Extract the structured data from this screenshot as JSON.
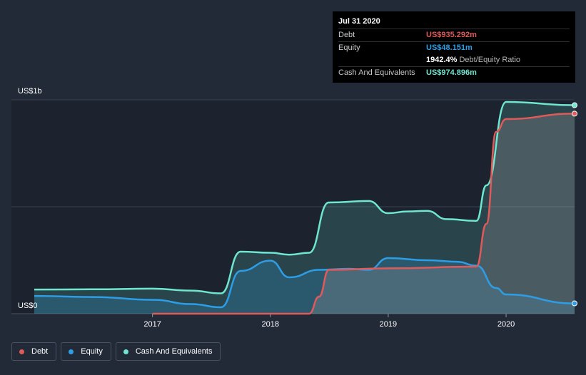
{
  "chart_data": {
    "type": "area",
    "yaxis": {
      "top_label": "US$1b",
      "bottom_label": "US$0"
    },
    "ylim": [
      0,
      1000
    ],
    "xlim": [
      "2016-01-01",
      "2020-07-31"
    ],
    "x_ticks": [
      {
        "label": "2017",
        "date": "2017-01-01"
      },
      {
        "label": "2018",
        "date": "2018-01-01"
      },
      {
        "label": "2019",
        "date": "2019-01-01"
      },
      {
        "label": "2020",
        "date": "2020-01-01"
      }
    ],
    "series": [
      {
        "name": "Debt",
        "key": "debt",
        "color": "#e05a5a",
        "points": [
          [
            "2017-01-01",
            0
          ],
          [
            "2018-05-01",
            0
          ],
          [
            "2018-06-01",
            80
          ],
          [
            "2018-07-01",
            205
          ],
          [
            "2019-01-01",
            212
          ],
          [
            "2019-10-01",
            220
          ],
          [
            "2019-11-01",
            420
          ],
          [
            "2019-12-01",
            850
          ],
          [
            "2020-01-01",
            910
          ],
          [
            "2020-07-31",
            935.292
          ]
        ]
      },
      {
        "name": "Equity",
        "key": "equity",
        "color": "#2d9ee6",
        "points": [
          [
            "2016-01-01",
            83
          ],
          [
            "2016-07-01",
            78
          ],
          [
            "2017-01-01",
            65
          ],
          [
            "2017-05-01",
            45
          ],
          [
            "2017-08-01",
            30
          ],
          [
            "2017-10-01",
            200
          ],
          [
            "2018-01-01",
            248
          ],
          [
            "2018-03-01",
            170
          ],
          [
            "2018-06-01",
            205
          ],
          [
            "2018-09-01",
            210
          ],
          [
            "2018-11-01",
            205
          ],
          [
            "2019-01-01",
            260
          ],
          [
            "2019-05-01",
            250
          ],
          [
            "2019-08-01",
            243
          ],
          [
            "2019-10-01",
            225
          ],
          [
            "2019-12-01",
            120
          ],
          [
            "2020-01-01",
            90
          ],
          [
            "2020-07-31",
            48.151
          ]
        ]
      },
      {
        "name": "Cash And Equivalents",
        "key": "cash",
        "color": "#6ee6d0",
        "points": [
          [
            "2016-01-01",
            113
          ],
          [
            "2016-07-01",
            114
          ],
          [
            "2017-01-01",
            117
          ],
          [
            "2017-05-01",
            108
          ],
          [
            "2017-08-01",
            95
          ],
          [
            "2017-10-01",
            290
          ],
          [
            "2018-01-01",
            285
          ],
          [
            "2018-03-01",
            276
          ],
          [
            "2018-05-01",
            285
          ],
          [
            "2018-07-01",
            520
          ],
          [
            "2018-11-01",
            527
          ],
          [
            "2019-01-01",
            470
          ],
          [
            "2019-03-01",
            478
          ],
          [
            "2019-05-01",
            481
          ],
          [
            "2019-07-01",
            442
          ],
          [
            "2019-10-01",
            434
          ],
          [
            "2019-11-01",
            600
          ],
          [
            "2020-01-01",
            990
          ],
          [
            "2020-07-31",
            974.896
          ]
        ]
      }
    ],
    "grid": true,
    "legend_position": "bottom-left"
  },
  "tooltip": {
    "date": "Jul 31 2020",
    "rows": [
      {
        "label": "Debt",
        "value": "US$935.292m",
        "color": "#e05a5a"
      },
      {
        "label": "Equity",
        "value": "US$48.151m",
        "color": "#2d9ee6"
      },
      {
        "label": "",
        "value": "1942.4%",
        "suffix": "Debt/Equity Ratio",
        "color": "#ffffff"
      },
      {
        "label": "Cash And Equivalents",
        "value": "US$974.896m",
        "color": "#6ee6d0"
      }
    ]
  },
  "legend": [
    {
      "label": "Debt",
      "color": "#e05a5a"
    },
    {
      "label": "Equity",
      "color": "#2d9ee6"
    },
    {
      "label": "Cash And Equivalents",
      "color": "#6ee6d0"
    }
  ]
}
